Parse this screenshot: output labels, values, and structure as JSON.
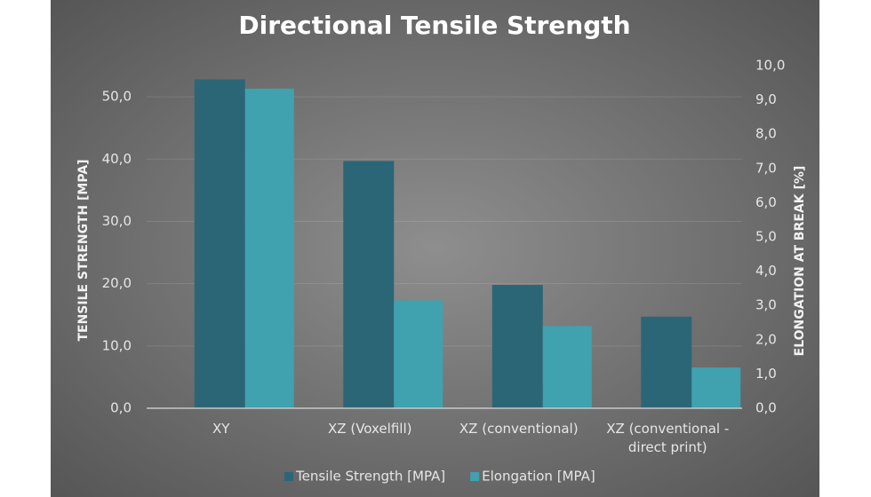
{
  "chart_data": {
    "type": "bar",
    "title": "Directional Tensile Strength",
    "y_label": "TENSILE STRENGTH [MPA]",
    "y2_label": "ELONGATION AT BREAK [%]",
    "categories": [
      "XY",
      "XZ (Voxelfill)",
      "XZ (conventional)",
      "XZ (conventional - direct print)"
    ],
    "series": [
      {
        "name": "Tensile Strength [MPA]",
        "color": "#2b6677",
        "values": [
          52.8,
          39.7,
          19.8,
          14.7
        ]
      },
      {
        "name": "Elongation [MPA]",
        "color": "#3fa2ae",
        "axis": "y2",
        "values": [
          9.33,
          3.15,
          2.4,
          1.19
        ]
      }
    ],
    "ylim": [
      0,
      55
    ],
    "yticks": [
      {
        "value": 0,
        "label": "0,0"
      },
      {
        "value": 10,
        "label": "10,0"
      },
      {
        "value": 20,
        "label": "20,0"
      },
      {
        "value": 30,
        "label": "30,0"
      },
      {
        "value": 40,
        "label": "40,0"
      },
      {
        "value": 50,
        "label": "50,0"
      }
    ],
    "y2lim": [
      0,
      10
    ],
    "y2ticks": [
      {
        "value": 0,
        "label": "0,0"
      },
      {
        "value": 1,
        "label": "1,0"
      },
      {
        "value": 2,
        "label": "2,0"
      },
      {
        "value": 3,
        "label": "3,0"
      },
      {
        "value": 4,
        "label": "4,0"
      },
      {
        "value": 5,
        "label": "5,0"
      },
      {
        "value": 6,
        "label": "6,0"
      },
      {
        "value": 7,
        "label": "7,0"
      },
      {
        "value": 8,
        "label": "8,0"
      },
      {
        "value": 9,
        "label": "9,0"
      },
      {
        "value": 10,
        "label": "10,0"
      }
    ],
    "grid": true,
    "legend": "bottom"
  }
}
